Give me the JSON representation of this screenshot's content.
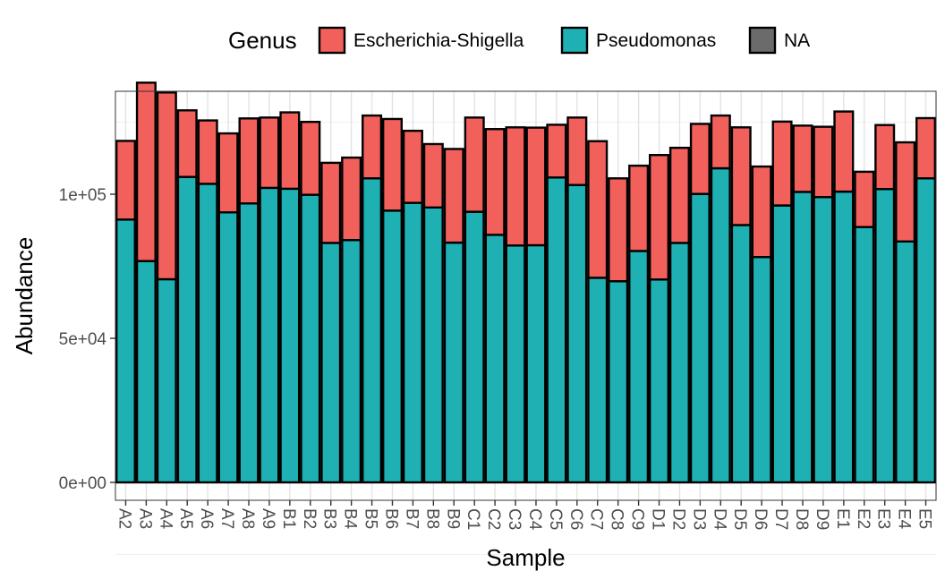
{
  "chart_data": {
    "type": "bar",
    "stacked": true,
    "xlabel": "Sample",
    "ylabel": "Abundance",
    "ylim": [
      0,
      135000
    ],
    "yticks": [
      0,
      50000,
      100000
    ],
    "ytick_labels": [
      "0e+00",
      "5e+04",
      "1e+05"
    ],
    "grid": true,
    "legend": {
      "title": "Genus",
      "position": "top"
    },
    "categories": [
      "A2",
      "A3",
      "A4",
      "A5",
      "A6",
      "A7",
      "A8",
      "A9",
      "B1",
      "B2",
      "B3",
      "B4",
      "B5",
      "B6",
      "B7",
      "B8",
      "B9",
      "C1",
      "C2",
      "C3",
      "C4",
      "C5",
      "C6",
      "C7",
      "C8",
      "C9",
      "D1",
      "D2",
      "D3",
      "D4",
      "D5",
      "D6",
      "D7",
      "D8",
      "D9",
      "E1",
      "E2",
      "E3",
      "E4",
      "E5"
    ],
    "series": [
      {
        "name": "Pseudomonas",
        "color": "#1fb0b4",
        "values": [
          91200,
          76800,
          70500,
          106000,
          103600,
          93700,
          96800,
          102200,
          101900,
          99800,
          83100,
          84100,
          105500,
          94300,
          97000,
          95400,
          83200,
          93900,
          85900,
          82200,
          82300,
          105800,
          103200,
          71000,
          69800,
          80300,
          70400,
          83100,
          100100,
          109000,
          89300,
          78200,
          96100,
          100800,
          99000,
          100900,
          88600,
          101800,
          83600,
          105500
        ]
      },
      {
        "name": "Escherichia-Shigella",
        "color": "#f2605b",
        "values": [
          27300,
          61900,
          64800,
          23100,
          22000,
          27400,
          29500,
          24400,
          26500,
          25300,
          27800,
          28600,
          21800,
          31800,
          25000,
          22000,
          32500,
          32700,
          36700,
          41000,
          40800,
          18300,
          23400,
          47400,
          35700,
          29600,
          43200,
          33000,
          24300,
          18300,
          33900,
          31400,
          29100,
          23000,
          24400,
          27800,
          19200,
          22200,
          34400,
          20900
        ]
      },
      {
        "name": "NA",
        "color": "#6b6b6b",
        "values": [
          0,
          0,
          0,
          0,
          0,
          0,
          0,
          0,
          0,
          0,
          0,
          0,
          0,
          0,
          0,
          0,
          0,
          0,
          0,
          0,
          0,
          0,
          0,
          0,
          0,
          0,
          0,
          0,
          0,
          0,
          0,
          0,
          0,
          0,
          0,
          0,
          0,
          0,
          0,
          0
        ]
      }
    ],
    "legend_order": [
      "Escherichia-Shigella",
      "Pseudomonas",
      "NA"
    ]
  }
}
